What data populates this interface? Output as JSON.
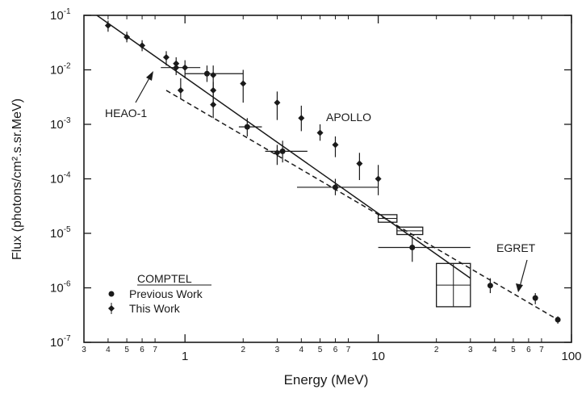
{
  "chart_data": {
    "type": "scatter",
    "xlabel": "Energy (MeV)",
    "ylabel": "Flux (photons/cm².s.sr.MeV)",
    "xscale": "log",
    "yscale": "log",
    "xlim": [
      0.3,
      100
    ],
    "ylim": [
      1e-07,
      0.1
    ],
    "grid": false,
    "x_ticks_major": [
      {
        "value": 1,
        "label": "1"
      },
      {
        "value": 10,
        "label": "10"
      },
      {
        "value": 100,
        "label": "100"
      }
    ],
    "x_ticks_minor": [
      {
        "value": 0.3,
        "label": "3"
      },
      {
        "value": 0.4,
        "label": "4"
      },
      {
        "value": 0.5,
        "label": "5"
      },
      {
        "value": 0.6,
        "label": "6"
      },
      {
        "value": 0.7,
        "label": "7"
      },
      {
        "value": 2,
        "label": "2"
      },
      {
        "value": 3,
        "label": "3"
      },
      {
        "value": 4,
        "label": "4"
      },
      {
        "value": 5,
        "label": "5"
      },
      {
        "value": 6,
        "label": "6"
      },
      {
        "value": 7,
        "label": "7"
      },
      {
        "value": 20,
        "label": "2"
      },
      {
        "value": 30,
        "label": "3"
      },
      {
        "value": 40,
        "label": "4"
      },
      {
        "value": 50,
        "label": "5"
      },
      {
        "value": 60,
        "label": "6"
      },
      {
        "value": 70,
        "label": "7"
      }
    ],
    "y_ticks": [
      {
        "value": 0.1,
        "base": "10",
        "exp": "-1"
      },
      {
        "value": 0.01,
        "base": "10",
        "exp": "-2"
      },
      {
        "value": 0.001,
        "base": "10",
        "exp": "-3"
      },
      {
        "value": 0.0001,
        "base": "10",
        "exp": "-4"
      },
      {
        "value": 1e-05,
        "base": "10",
        "exp": "-5"
      },
      {
        "value": 1e-06,
        "base": "10",
        "exp": "-6"
      },
      {
        "value": 1e-07,
        "base": "10",
        "exp": "-7"
      }
    ],
    "annotations": {
      "heao": "HEAO-1",
      "apollo": "APOLLO",
      "egret": "EGRET"
    },
    "legend": {
      "title": "COMPTEL",
      "placement": "bottom-left",
      "items": [
        {
          "label": "Previous Work",
          "marker": "circle"
        },
        {
          "label": "This Work",
          "marker": "diamond"
        }
      ]
    },
    "lines": [
      {
        "name": "",
        "style": "solid",
        "points": [
          [
            0.35,
            0.1
          ],
          [
            30,
            1.5e-06
          ]
        ]
      },
      {
        "name": "",
        "style": "dashed",
        "points": [
          [
            0.8,
            0.0042
          ],
          [
            85,
            2.6e-07
          ]
        ]
      }
    ],
    "heao_points": [
      {
        "x": 0.4,
        "y": 0.065,
        "ylo": 0.05,
        "yhi": 0.08
      },
      {
        "x": 0.5,
        "y": 0.04,
        "ylo": 0.032,
        "yhi": 0.05
      },
      {
        "x": 0.6,
        "y": 0.028,
        "ylo": 0.022,
        "yhi": 0.035
      },
      {
        "x": 0.8,
        "y": 0.017,
        "ylo": 0.012,
        "yhi": 0.022
      },
      {
        "x": 0.9,
        "y": 0.013,
        "ylo": 0.008,
        "yhi": 0.017
      },
      {
        "x": 1.0,
        "y": 0.011,
        "ylo": 0.007,
        "yhi": 0.015
      },
      {
        "x": 1.4,
        "y": 0.008,
        "ylo": 0.0045,
        "yhi": 0.012
      }
    ],
    "apollo_points": [
      {
        "x": 0.95,
        "y": 0.0042,
        "ylo": 0.003,
        "yhi": 0.007
      },
      {
        "x": 1.4,
        "y": 0.0023,
        "ylo": 0.0013,
        "yhi": 0.0045
      },
      {
        "x": 2.0,
        "y": 0.0056,
        "ylo": 0.0025,
        "yhi": 0.01
      },
      {
        "x": 3.0,
        "y": 0.0025,
        "ylo": 0.0012,
        "yhi": 0.004
      },
      {
        "x": 4.0,
        "y": 0.0013,
        "ylo": 0.00075,
        "yhi": 0.0022
      },
      {
        "x": 5.0,
        "y": 0.0007,
        "ylo": 0.0005,
        "yhi": 0.001
      },
      {
        "x": 6.0,
        "y": 0.00042,
        "ylo": 0.00025,
        "yhi": 0.0006
      },
      {
        "x": 8.0,
        "y": 0.00019,
        "ylo": 9.5e-05,
        "yhi": 0.0003
      },
      {
        "x": 10.0,
        "y": 0.0001,
        "ylo": 5e-05,
        "yhi": 0.00018
      }
    ],
    "comptel_previous": [
      {
        "x": 1.3,
        "y": 0.0085,
        "xlo": 1.0,
        "xhi": 2.0,
        "ylo": 0.006,
        "yhi": 0.012
      },
      {
        "x": 2.1,
        "y": 0.0009,
        "xlo": 1.9,
        "xhi": 2.5,
        "ylo": 0.0006,
        "yhi": 0.0013
      },
      {
        "x": 3.2,
        "y": 0.00032,
        "xlo": 2.6,
        "xhi": 4.3,
        "ylo": 0.0002,
        "yhi": 0.0005
      },
      {
        "x": 6.0,
        "y": 7e-05,
        "xlo": 3.8,
        "xhi": 10,
        "ylo": 5e-05,
        "yhi": 0.0001
      },
      {
        "x": 15,
        "y": 5.5e-06,
        "xlo": 10,
        "xhi": 30,
        "ylo": 3e-06,
        "yhi": 9e-06
      },
      {
        "x": 38,
        "y": 1.1e-06,
        "xlo": 38,
        "xhi": 38,
        "ylo": 8e-07,
        "yhi": 1.5e-06
      },
      {
        "x": 65,
        "y": 6.5e-07,
        "xlo": 65,
        "xhi": 65,
        "ylo": 5e-07,
        "yhi": 8e-07
      },
      {
        "x": 85,
        "y": 2.6e-07,
        "xlo": 85,
        "xhi": 85,
        "ylo": 2.2e-07,
        "yhi": 3e-07
      }
    ],
    "comptel_this_work": [
      {
        "x": 0.9,
        "y": 0.011,
        "xlo": 0.75,
        "xhi": 1.2,
        "ylo": 0.009,
        "yhi": 0.013
      },
      {
        "x": 1.4,
        "y": 0.0042,
        "xlo": 1.4,
        "xhi": 1.4,
        "ylo": 0.0025,
        "yhi": 0.006
      },
      {
        "x": 3.0,
        "y": 0.0003,
        "xlo": 3.0,
        "xhi": 3.0,
        "ylo": 0.00018,
        "yhi": 0.00042
      }
    ],
    "boxes": [
      {
        "x0": 10,
        "x1": 12.5,
        "y0": 1.6e-05,
        "y1": 2.2e-05
      },
      {
        "x0": 12.5,
        "x1": 17,
        "y0": 9.5e-06,
        "y1": 1.3e-05
      },
      {
        "x0": 20,
        "x1": 30,
        "y0": 4.5e-07,
        "y1": 2.8e-06
      }
    ]
  }
}
